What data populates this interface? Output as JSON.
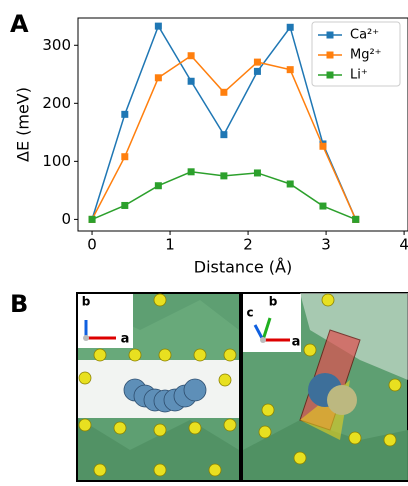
{
  "panel_a_label": "A",
  "chart_data": {
    "type": "line",
    "x": [
      0,
      0.42,
      0.85,
      1.27,
      1.69,
      2.12,
      2.54,
      2.96,
      3.38
    ],
    "series": [
      {
        "name": "Ca²⁺",
        "color": "#1f77b4",
        "values": [
          0,
          181,
          333,
          238,
          146,
          255,
          331,
          130,
          0
        ]
      },
      {
        "name": "Mg²⁺",
        "color": "#ff7f0e",
        "values": [
          0,
          108,
          244,
          282,
          219,
          271,
          258,
          126,
          0
        ]
      },
      {
        "name": "Li⁺",
        "color": "#2ca02c",
        "values": [
          0,
          24,
          58,
          82,
          75,
          80,
          61,
          23,
          0
        ]
      }
    ],
    "xlabel": "Distance (Å)",
    "ylabel": "ΔE (meV)",
    "xlim": [
      -0.18,
      4.05
    ],
    "ylim": [
      -20,
      347
    ],
    "xticks": [
      0,
      1,
      2,
      3,
      4
    ],
    "yticks": [
      0,
      100,
      200,
      300
    ],
    "legend": "upper right"
  },
  "panel_b": {
    "label": "B",
    "left_axes": [
      "b",
      "a"
    ],
    "right_axes": [
      "c",
      "b",
      "a"
    ]
  }
}
